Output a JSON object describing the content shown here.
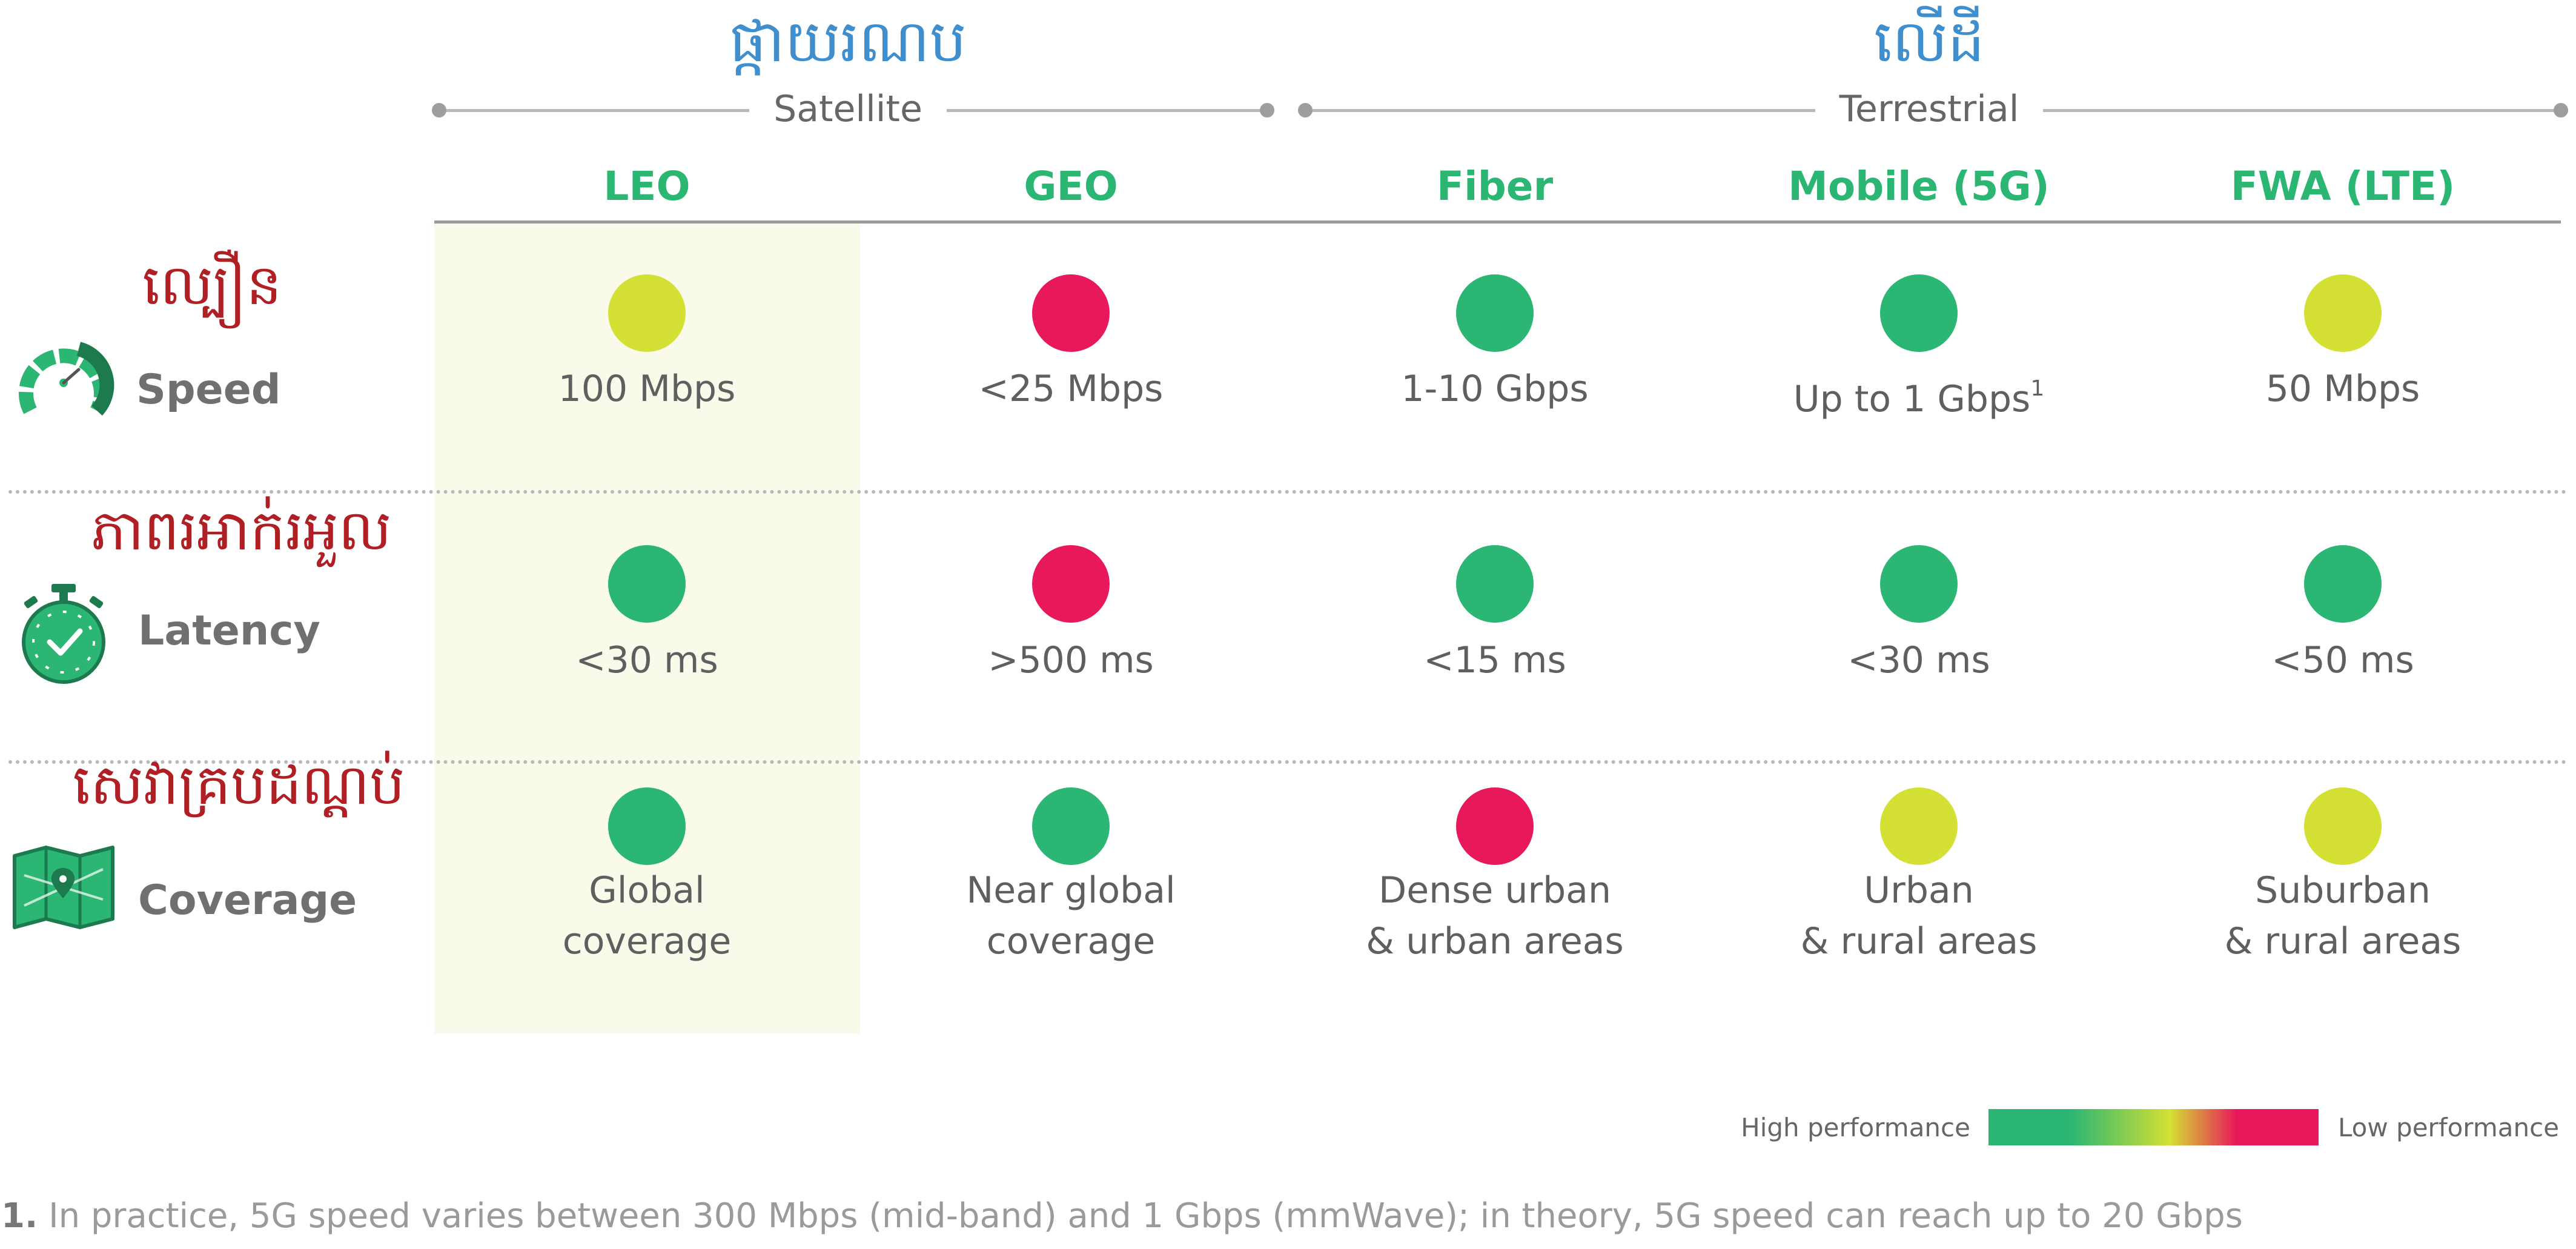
{
  "groups": {
    "satellite": {
      "khmer": "ផ្កាយរណប",
      "label": "Satellite"
    },
    "terrestrial": {
      "khmer": "លើដី",
      "label": "Terrestrial"
    }
  },
  "columns": [
    "LEO",
    "GEO",
    "Fiber",
    "Mobile (5G)",
    "FWA (LTE)"
  ],
  "rows": [
    {
      "khmer": "ល្បឿន",
      "label": "Speed",
      "icon": "speedometer-icon",
      "cells": [
        {
          "rating": "medium",
          "text": "100 Mbps"
        },
        {
          "rating": "low",
          "text": "<25 Mbps"
        },
        {
          "rating": "high",
          "text": "1-10 Gbps"
        },
        {
          "rating": "high",
          "text": "Up to 1 Gbps",
          "note": "1"
        },
        {
          "rating": "medium",
          "text": "50 Mbps"
        }
      ]
    },
    {
      "khmer": "ភាពរអាក់រអួល",
      "label": "Latency",
      "icon": "stopwatch-icon",
      "cells": [
        {
          "rating": "high",
          "text": "<30 ms"
        },
        {
          "rating": "low",
          "text": ">500 ms"
        },
        {
          "rating": "high",
          "text": "<15 ms"
        },
        {
          "rating": "high",
          "text": "<30 ms"
        },
        {
          "rating": "high",
          "text": "<50 ms"
        }
      ]
    },
    {
      "khmer": "សេវាគ្របដណ្ដប់",
      "label": "Coverage",
      "icon": "map-pin-icon",
      "cells": [
        {
          "rating": "high",
          "text": "Global\ncoverage"
        },
        {
          "rating": "high",
          "text": "Near global\ncoverage"
        },
        {
          "rating": "low",
          "text": "Dense urban\n& urban areas"
        },
        {
          "rating": "medium",
          "text": "Urban\n& rural areas"
        },
        {
          "rating": "medium",
          "text": "Suburban\n& rural areas"
        }
      ]
    }
  ],
  "colors": {
    "high": "#2bb673",
    "medium": "#d4e034",
    "low": "#e8195a",
    "header": "#2bb673",
    "khmer_group": "#3f8fcf",
    "khmer_row": "#b01f24",
    "highlight_band": "#fafaeb"
  },
  "legend": {
    "high_label": "High performance",
    "low_label": "Low performance"
  },
  "footnote": {
    "marker": "1.",
    "text": "In practice, 5G speed varies between 300 Mbps (mid-band) and 1 Gbps (mmWave); in theory, 5G speed can reach up to 20 Gbps"
  }
}
